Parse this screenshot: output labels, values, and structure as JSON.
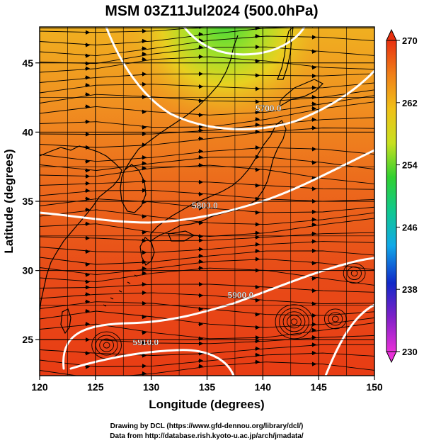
{
  "title": "MSM 03Z11Jul2024 (500.0hPa)",
  "x_axis": {
    "label": "Longitude (degrees)",
    "ticks": [
      "120",
      "125",
      "130",
      "135",
      "140",
      "145",
      "150"
    ],
    "range": [
      120,
      150
    ]
  },
  "y_axis": {
    "label": "Latitude  (degrees)",
    "ticks": [
      "25",
      "30",
      "35",
      "40",
      "45"
    ],
    "range": [
      22.4,
      47.6
    ]
  },
  "colorbar": {
    "ticks": [
      "230",
      "238",
      "246",
      "254",
      "262",
      "270"
    ],
    "range": [
      230,
      270
    ],
    "colors": [
      "#e830d8",
      "#8020c8",
      "#1028c8",
      "#10a8e8",
      "#10c890",
      "#30d030",
      "#c8e020",
      "#f0c018",
      "#f08018",
      "#e83010"
    ]
  },
  "contours": [
    {
      "label": "5700.0",
      "lon": 140.5,
      "lat": 41.5
    },
    {
      "label": "5800.0",
      "lon": 134.8,
      "lat": 34.5
    },
    {
      "label": "5900.0",
      "lon": 138.0,
      "lat": 28.0
    },
    {
      "label": "5910.0",
      "lon": 129.5,
      "lat": 24.6
    }
  ],
  "credits": [
    "Drawing by DCL (https://www.gfd-dennou.org/library/dcl/)",
    "Data from http://database.rish.kyoto-u.ac.jp/arch/jmadata/"
  ]
}
